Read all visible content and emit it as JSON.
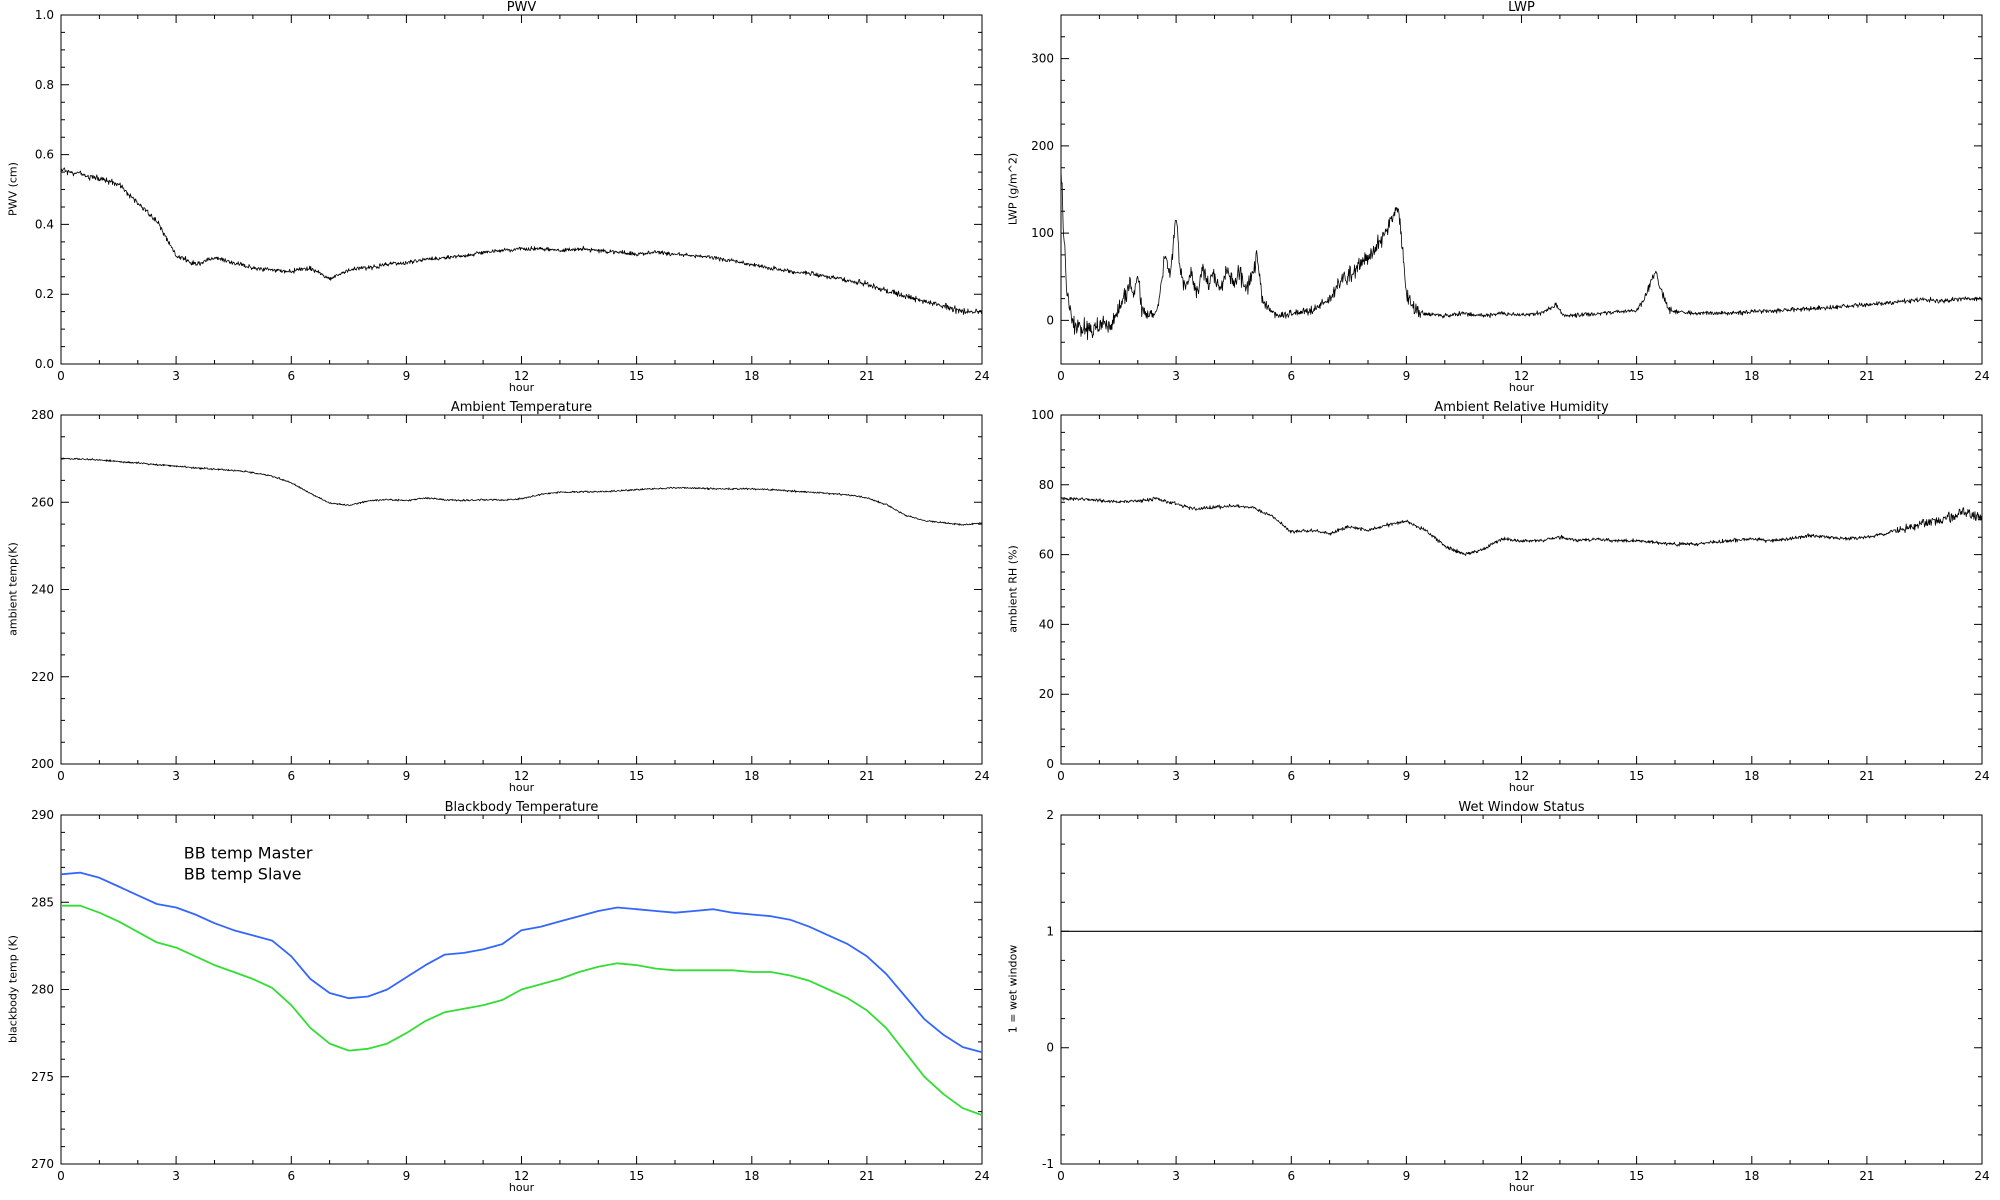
{
  "page": {
    "background": "#ffffff",
    "axis_color": "#000000"
  },
  "colors": {
    "bb_master_blue": "#3366ff",
    "bb_slave_green": "#33dd33",
    "series_black": "#000000"
  },
  "chart_data": [
    {
      "id": "pwv",
      "type": "scatter",
      "title": "PWV",
      "xlabel": "hour",
      "ylabel": "PWV (cm)",
      "xlim": [
        0,
        24
      ],
      "ylim": [
        0.0,
        1.0
      ],
      "xticks": [
        0,
        3,
        6,
        9,
        12,
        15,
        18,
        21,
        24
      ],
      "xtick_labels": [
        "0",
        "3",
        "6",
        "9",
        "12",
        "15",
        "18",
        "21",
        "24"
      ],
      "yticks": [
        0.0,
        0.2,
        0.4,
        0.6,
        0.8,
        1.0
      ],
      "ytick_labels": [
        "0.0",
        "0.2",
        "0.4",
        "0.6",
        "0.8",
        "1.0"
      ],
      "x_minor_per_major": 3,
      "y_minor_per_major": 4,
      "series": [
        {
          "name": "PWV",
          "color": "#000000",
          "line_width": 0.8,
          "noise_profile": [
            [
              0,
              0.009
            ],
            [
              3,
              0.009
            ],
            [
              4,
              0.006
            ],
            [
              19,
              0.006
            ],
            [
              22,
              0.008
            ],
            [
              24,
              0.009
            ]
          ],
          "x_start": 0,
          "x_step": 0.5,
          "y": [
            0.555,
            0.545,
            0.53,
            0.515,
            0.46,
            0.41,
            0.31,
            0.285,
            0.305,
            0.29,
            0.275,
            0.27,
            0.265,
            0.275,
            0.245,
            0.27,
            0.275,
            0.285,
            0.29,
            0.3,
            0.305,
            0.31,
            0.32,
            0.325,
            0.33,
            0.33,
            0.325,
            0.33,
            0.325,
            0.32,
            0.315,
            0.32,
            0.315,
            0.31,
            0.305,
            0.295,
            0.285,
            0.275,
            0.265,
            0.26,
            0.25,
            0.24,
            0.23,
            0.21,
            0.195,
            0.18,
            0.165,
            0.15,
            0.148
          ]
        }
      ]
    },
    {
      "id": "lwp",
      "type": "scatter",
      "title": "LWP",
      "xlabel": "hour",
      "ylabel": "LWP (g/m^2)",
      "xlim": [
        0,
        24
      ],
      "ylim": [
        -50,
        350
      ],
      "xticks": [
        0,
        3,
        6,
        9,
        12,
        15,
        18,
        21,
        24
      ],
      "xtick_labels": [
        "0",
        "3",
        "6",
        "9",
        "12",
        "15",
        "18",
        "21",
        "24"
      ],
      "yticks": [
        0,
        100,
        200,
        300
      ],
      "ytick_labels": [
        "0",
        "100",
        "200",
        "300"
      ],
      "x_minor_per_major": 3,
      "y_minor_per_major": 4,
      "series": [
        {
          "name": "LWP",
          "color": "#000000",
          "line_width": 0.8,
          "noise_profile": [
            [
              0,
              10
            ],
            [
              5.3,
              10
            ],
            [
              5.6,
              4
            ],
            [
              7,
              5
            ],
            [
              7.5,
              9
            ],
            [
              9.2,
              9
            ],
            [
              9.6,
              2.5
            ],
            [
              15,
              2.5
            ],
            [
              15.3,
              5
            ],
            [
              15.8,
              5
            ],
            [
              16.1,
              2.5
            ],
            [
              24,
              2.5
            ]
          ],
          "x": [
            0,
            0.05,
            0.15,
            0.3,
            0.5,
            0.8,
            1.0,
            1.3,
            1.6,
            1.8,
            1.9,
            2.0,
            2.1,
            2.3,
            2.5,
            2.7,
            2.85,
            3.0,
            3.1,
            3.25,
            3.4,
            3.55,
            3.7,
            3.85,
            4.0,
            4.15,
            4.3,
            4.5,
            4.65,
            4.8,
            4.95,
            5.1,
            5.25,
            5.5,
            5.75,
            6.0,
            6.5,
            7.0,
            7.3,
            7.6,
            7.9,
            8.1,
            8.3,
            8.5,
            8.65,
            8.8,
            8.9,
            9.0,
            9.2,
            9.5,
            10.0,
            10.5,
            11.0,
            11.5,
            12.0,
            12.5,
            12.9,
            13.0,
            13.1,
            13.5,
            14.0,
            14.5,
            15.0,
            15.2,
            15.4,
            15.5,
            15.6,
            15.8,
            16.0,
            16.5,
            17.0,
            18.0,
            19.0,
            20.0,
            21.0,
            21.5,
            22.0,
            22.5,
            23.0,
            23.5,
            24.0
          ],
          "y": [
            180,
            120,
            35,
            -5,
            -10,
            -10,
            -8,
            -5,
            20,
            45,
            28,
            55,
            15,
            5,
            10,
            70,
            50,
            120,
            60,
            35,
            55,
            30,
            60,
            45,
            55,
            35,
            60,
            40,
            55,
            35,
            45,
            75,
            25,
            8,
            5,
            8,
            10,
            25,
            45,
            55,
            70,
            75,
            90,
            105,
            120,
            128,
            80,
            30,
            12,
            8,
            5,
            8,
            5,
            8,
            6,
            8,
            18,
            12,
            6,
            6,
            8,
            10,
            12,
            25,
            50,
            55,
            40,
            15,
            10,
            8,
            8,
            10,
            12,
            15,
            18,
            20,
            22,
            24,
            22,
            25,
            25
          ]
        }
      ]
    },
    {
      "id": "ambient_temperature",
      "type": "scatter",
      "title": "Ambient Temperature",
      "xlabel": "hour",
      "ylabel": "ambient temp(K)",
      "xlim": [
        0,
        24
      ],
      "ylim": [
        200,
        280
      ],
      "xticks": [
        0,
        3,
        6,
        9,
        12,
        15,
        18,
        21,
        24
      ],
      "xtick_labels": [
        "0",
        "3",
        "6",
        "9",
        "12",
        "15",
        "18",
        "21",
        "24"
      ],
      "yticks": [
        200,
        220,
        240,
        260,
        280
      ],
      "ytick_labels": [
        "200",
        "220",
        "240",
        "260",
        "280"
      ],
      "x_minor_per_major": 3,
      "y_minor_per_major": 4,
      "series": [
        {
          "name": "ambient temp",
          "color": "#000000",
          "line_width": 0.8,
          "noise_profile": [
            [
              0,
              0.2
            ],
            [
              24,
              0.2
            ]
          ],
          "x_start": 0,
          "x_step": 0.5,
          "y": [
            270.0,
            269.9,
            269.7,
            269.3,
            269.0,
            268.6,
            268.3,
            267.9,
            267.6,
            267.3,
            266.8,
            266.0,
            264.5,
            262.0,
            259.8,
            259.3,
            260.3,
            260.6,
            260.4,
            261.0,
            260.6,
            260.4,
            260.6,
            260.5,
            260.8,
            261.8,
            262.3,
            262.4,
            262.4,
            262.6,
            262.9,
            263.1,
            263.4,
            263.2,
            263.1,
            263.0,
            263.1,
            262.9,
            262.6,
            262.3,
            262.0,
            261.7,
            261.0,
            259.5,
            257.0,
            255.8,
            255.3,
            254.8,
            255.3
          ]
        }
      ]
    },
    {
      "id": "ambient_relative_humidity",
      "type": "scatter",
      "title": "Ambient Relative Humidity",
      "xlabel": "hour",
      "ylabel": "ambient RH (%)",
      "xlim": [
        0,
        24
      ],
      "ylim": [
        0,
        100
      ],
      "xticks": [
        0,
        3,
        6,
        9,
        12,
        15,
        18,
        21,
        24
      ],
      "xtick_labels": [
        "0",
        "3",
        "6",
        "9",
        "12",
        "15",
        "18",
        "21",
        "24"
      ],
      "yticks": [
        0,
        20,
        40,
        60,
        80,
        100
      ],
      "ytick_labels": [
        "0",
        "20",
        "40",
        "60",
        "80",
        "100"
      ],
      "x_minor_per_major": 3,
      "y_minor_per_major": 4,
      "series": [
        {
          "name": "ambient RH",
          "color": "#000000",
          "line_width": 0.8,
          "noise_profile": [
            [
              0,
              0.5
            ],
            [
              21.5,
              0.5
            ],
            [
              22,
              1.0
            ],
            [
              23,
              1.5
            ],
            [
              24,
              1.5
            ]
          ],
          "x_start": 0,
          "x_step": 0.5,
          "y": [
            76,
            76,
            75.5,
            75,
            75.5,
            76,
            74.5,
            73,
            73.5,
            74,
            73.5,
            71,
            66.5,
            67,
            66,
            68,
            67,
            68.5,
            69.5,
            67,
            62.5,
            60,
            61.5,
            64.5,
            64,
            64,
            65,
            64,
            64.5,
            64,
            64,
            63.5,
            63,
            63,
            63.5,
            64,
            64.5,
            64,
            64.5,
            65.5,
            65,
            64.5,
            65,
            66,
            67.5,
            69,
            70.5,
            72,
            70.5
          ]
        }
      ]
    },
    {
      "id": "blackbody_temperature",
      "type": "line",
      "title": "Blackbody Temperature",
      "xlabel": "hour",
      "ylabel": "blackbody temp (K)",
      "xlim": [
        0,
        24
      ],
      "ylim": [
        270,
        290
      ],
      "xticks": [
        0,
        3,
        6,
        9,
        12,
        15,
        18,
        21,
        24
      ],
      "xtick_labels": [
        "0",
        "3",
        "6",
        "9",
        "12",
        "15",
        "18",
        "21",
        "24"
      ],
      "yticks": [
        270,
        275,
        280,
        285,
        290
      ],
      "ytick_labels": [
        "270",
        "275",
        "280",
        "285",
        "290"
      ],
      "x_minor_per_major": 3,
      "y_minor_per_major": 5,
      "legend": [
        {
          "label": "BB temp Master",
          "color": "#3366ff",
          "x": 3.2,
          "y": 287.5
        },
        {
          "label": "BB temp Slave",
          "color": "#33dd33",
          "x": 3.2,
          "y": 286.3
        }
      ],
      "series": [
        {
          "name": "BB temp Master",
          "color": "#3366ff",
          "line_width": 1.8,
          "x_start": 0,
          "x_step": 0.5,
          "y": [
            286.6,
            286.7,
            286.4,
            285.9,
            285.4,
            284.9,
            284.7,
            284.3,
            283.8,
            283.4,
            283.1,
            282.8,
            281.9,
            280.6,
            279.8,
            279.5,
            279.6,
            280.0,
            280.7,
            281.4,
            282.0,
            282.1,
            282.3,
            282.6,
            283.4,
            283.6,
            283.9,
            284.2,
            284.5,
            284.7,
            284.6,
            284.5,
            284.4,
            284.5,
            284.6,
            284.4,
            284.3,
            284.2,
            284.0,
            283.6,
            283.1,
            282.6,
            281.9,
            280.9,
            279.6,
            278.3,
            277.4,
            276.7,
            276.4
          ]
        },
        {
          "name": "BB temp Slave",
          "color": "#33dd33",
          "line_width": 1.8,
          "x_start": 0,
          "x_step": 0.5,
          "y": [
            284.8,
            284.8,
            284.4,
            283.9,
            283.3,
            282.7,
            282.4,
            281.9,
            281.4,
            281.0,
            280.6,
            280.1,
            279.1,
            277.8,
            276.9,
            276.5,
            276.6,
            276.9,
            277.5,
            278.2,
            278.7,
            278.9,
            279.1,
            279.4,
            280.0,
            280.3,
            280.6,
            281.0,
            281.3,
            281.5,
            281.4,
            281.2,
            281.1,
            281.1,
            281.1,
            281.1,
            281.0,
            281.0,
            280.8,
            280.5,
            280.0,
            279.5,
            278.8,
            277.8,
            276.4,
            275.0,
            274.0,
            273.2,
            272.8
          ]
        }
      ]
    },
    {
      "id": "wet_window_status",
      "type": "line",
      "title": "Wet Window Status",
      "xlabel": "hour",
      "ylabel": "1 = wet window",
      "xlim": [
        0,
        24
      ],
      "ylim": [
        -1,
        2
      ],
      "xticks": [
        0,
        3,
        6,
        9,
        12,
        15,
        18,
        21,
        24
      ],
      "xtick_labels": [
        "0",
        "3",
        "6",
        "9",
        "12",
        "15",
        "18",
        "21",
        "24"
      ],
      "yticks": [
        -1,
        0,
        1,
        2
      ],
      "ytick_labels": [
        "-1",
        "0",
        "1",
        "2"
      ],
      "x_minor_per_major": 3,
      "y_minor_per_major": 4,
      "series": [
        {
          "name": "wet window flag",
          "color": "#000000",
          "line_width": 1.2,
          "x": [
            0,
            24
          ],
          "y": [
            1,
            1
          ]
        }
      ]
    }
  ]
}
